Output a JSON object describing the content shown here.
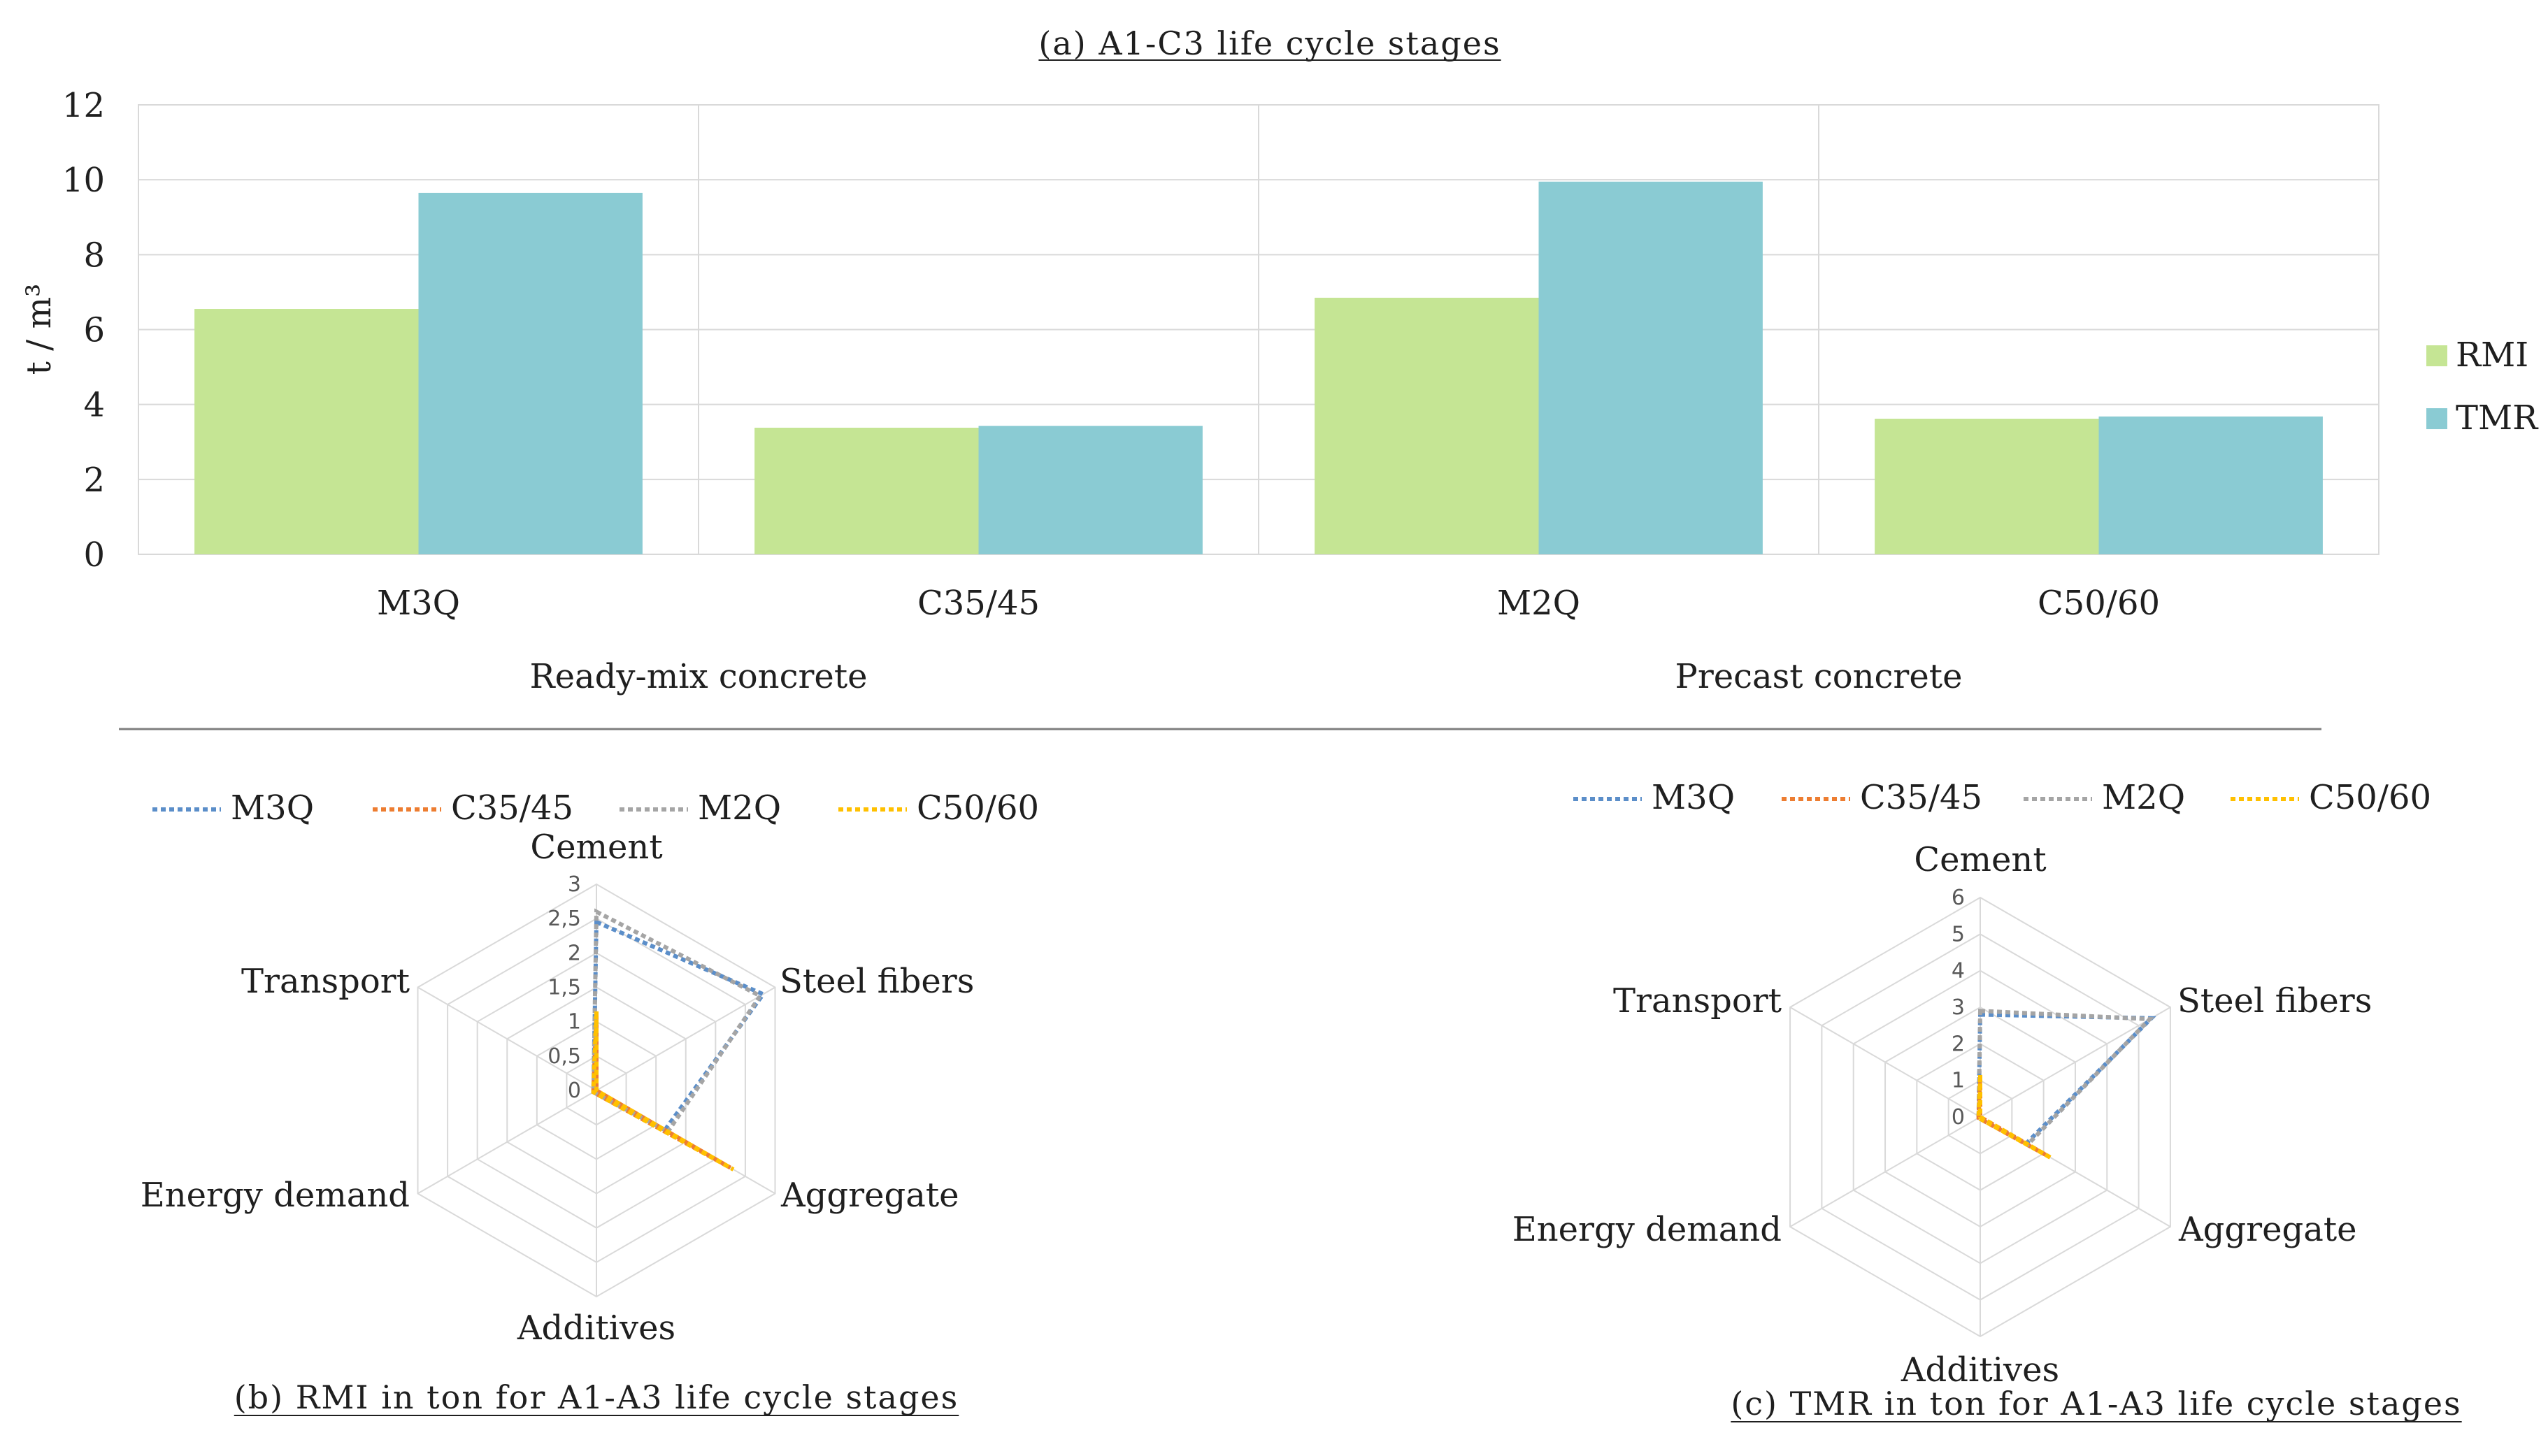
{
  "chart_data": [
    {
      "id": "a",
      "type": "bar",
      "title": "(a) A1-C3 life cycle stages",
      "ylabel": "t / m³",
      "ylim": [
        0,
        12
      ],
      "yticks": [
        0,
        2,
        4,
        6,
        8,
        10,
        12
      ],
      "categories": [
        "M3Q",
        "C35/45",
        "M2Q",
        "C50/60"
      ],
      "groups": [
        {
          "label": "Ready-mix concrete",
          "categories": [
            "M3Q",
            "C35/45"
          ]
        },
        {
          "label": "Precast concrete",
          "categories": [
            "M2Q",
            "C50/60"
          ]
        }
      ],
      "series": [
        {
          "name": "RMI",
          "color": "#c5e594",
          "values": [
            6.55,
            3.38,
            6.85,
            3.62
          ]
        },
        {
          "name": "TMR",
          "color": "#8acbd3",
          "values": [
            9.65,
            3.43,
            9.95,
            3.68
          ]
        }
      ],
      "legend_position": "right"
    },
    {
      "id": "b",
      "type": "radar",
      "title": "(b) RMI in ton for A1-A3 life cycle stages",
      "axes": [
        "Cement",
        "Steel fibers",
        "Aggregate",
        "Additives",
        "Energy demand",
        "Transport"
      ],
      "rmax": 3,
      "ticks": [
        "0",
        "0,5",
        "1",
        "1,5",
        "2",
        "2,5",
        "3"
      ],
      "tick_values": [
        0,
        0.5,
        1,
        1.5,
        2,
        2.5,
        3
      ],
      "series": [
        {
          "name": "M3Q",
          "color": "#5b8ec9",
          "values": [
            2.45,
            2.8,
            1.15,
            0.05,
            0.05,
            0.05
          ]
        },
        {
          "name": "C35/45",
          "color": "#ed7d31",
          "values": [
            1.1,
            0,
            2.25,
            0.05,
            0.05,
            0.05
          ]
        },
        {
          "name": "M2Q",
          "color": "#a5a5a5",
          "values": [
            2.6,
            2.75,
            1.2,
            0.05,
            0.05,
            0.05
          ]
        },
        {
          "name": "C50/60",
          "color": "#ffc000",
          "values": [
            1.15,
            0,
            2.3,
            0.05,
            0.05,
            0.05
          ]
        }
      ],
      "legend_position": "top"
    },
    {
      "id": "c",
      "type": "radar",
      "title": "(c) TMR in ton for A1-A3 life cycle stages",
      "axes": [
        "Cement",
        "Steel fibers",
        "Aggregate",
        "Additives",
        "Energy demand",
        "Transport"
      ],
      "rmax": 6,
      "ticks": [
        "0",
        "1",
        "2",
        "3",
        "4",
        "5",
        "6"
      ],
      "tick_values": [
        0,
        1,
        2,
        3,
        4,
        5,
        6
      ],
      "series": [
        {
          "name": "M3Q",
          "color": "#5b8ec9",
          "values": [
            2.8,
            5.4,
            1.45,
            0.05,
            0.05,
            0.05
          ]
        },
        {
          "name": "C35/45",
          "color": "#ed7d31",
          "values": [
            1.1,
            0,
            2.2,
            0.05,
            0.05,
            0.05
          ]
        },
        {
          "name": "M2Q",
          "color": "#a5a5a5",
          "values": [
            2.9,
            5.35,
            1.5,
            0.05,
            0.05,
            0.05
          ]
        },
        {
          "name": "C50/60",
          "color": "#ffc000",
          "values": [
            1.15,
            0,
            2.25,
            0.05,
            0.05,
            0.05
          ]
        }
      ],
      "legend_position": "top"
    }
  ]
}
